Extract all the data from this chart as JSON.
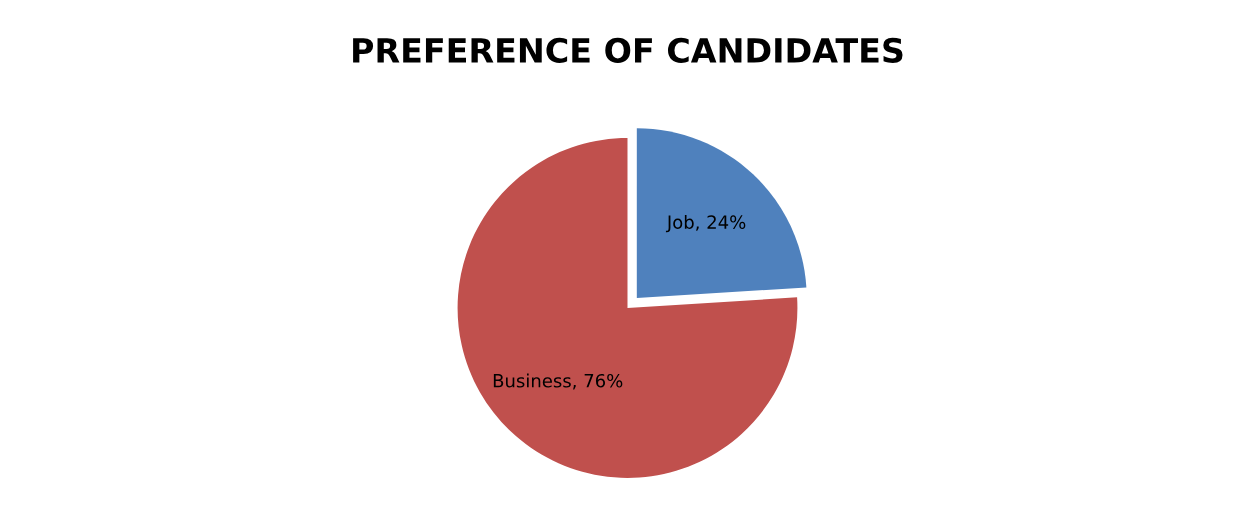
{
  "chart_data": {
    "type": "pie",
    "title": "PREFERENCE OF CANDIDATES",
    "categories": [
      "Job",
      "Business"
    ],
    "values": [
      24,
      76
    ],
    "colors": [
      "#4f81bd",
      "#c0504d"
    ],
    "value_labels": [
      "24%",
      "76%"
    ],
    "legend": false
  }
}
